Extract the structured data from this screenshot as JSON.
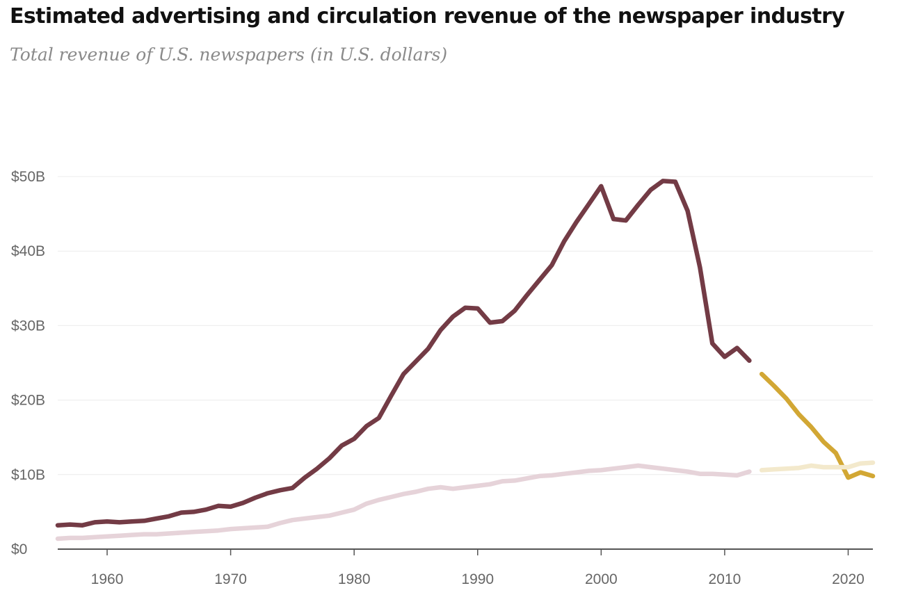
{
  "header": {
    "title": "Estimated advertising and circulation revenue of the newspaper industry",
    "subtitle": "Total revenue of U.S. newspapers (in U.S. dollars)"
  },
  "colors": {
    "advertising": "#733b45",
    "circulation": "#e6d3d9",
    "advertising_estimate": "#d2a734",
    "circulation_estimate": "#f3e9cc"
  },
  "chart_data": {
    "type": "line",
    "title": "Estimated advertising and circulation revenue of the newspaper industry",
    "subtitle": "Total revenue of U.S. newspapers (in U.S. dollars)",
    "xlabel": "",
    "ylabel": "",
    "xlim": [
      1956,
      2022
    ],
    "ylim": [
      0,
      50
    ],
    "x_ticks": [
      1960,
      1970,
      1980,
      1990,
      2000,
      2010,
      2020
    ],
    "x_tick_labels": [
      "1960",
      "1970",
      "1980",
      "1990",
      "2000",
      "2010",
      "2020"
    ],
    "y_ticks": [
      0,
      10,
      20,
      30,
      40,
      50
    ],
    "y_tick_labels": [
      "$0",
      "$10B",
      "$20B",
      "$30B",
      "$40B",
      "$50B"
    ],
    "grid": true,
    "legend": "none",
    "series": [
      {
        "color": "#733b45",
        "x": [
          1956,
          1957,
          1958,
          1959,
          1960,
          1961,
          1962,
          1963,
          1964,
          1965,
          1966,
          1967,
          1968,
          1969,
          1970,
          1971,
          1972,
          1973,
          1974,
          1975,
          1976,
          1977,
          1978,
          1979,
          1980,
          1981,
          1982,
          1983,
          1984,
          1985,
          1986,
          1987,
          1988,
          1989,
          1990,
          1991,
          1992,
          1993,
          1994,
          1995,
          1996,
          1997,
          1998,
          1999,
          2000,
          2001,
          2002,
          2003,
          2004,
          2005,
          2006,
          2007,
          2008,
          2009,
          2010,
          2011,
          2012
        ],
        "values": [
          3.2,
          3.3,
          3.2,
          3.6,
          3.7,
          3.6,
          3.7,
          3.8,
          4.1,
          4.4,
          4.9,
          5.0,
          5.3,
          5.8,
          5.7,
          6.2,
          6.9,
          7.5,
          7.9,
          8.2,
          9.6,
          10.8,
          12.2,
          13.9,
          14.8,
          16.5,
          17.6,
          20.6,
          23.5,
          25.2,
          26.9,
          29.4,
          31.2,
          32.4,
          32.3,
          30.4,
          30.6,
          32.0,
          34.1,
          36.1,
          38.1,
          41.3,
          43.9,
          46.3,
          48.7,
          44.3,
          44.1,
          46.2,
          48.2,
          49.4,
          49.3,
          45.4,
          37.8,
          27.6,
          25.8,
          27.0,
          25.3
        ]
      },
      {
        "color": "#e6d3d9",
        "x": [
          1956,
          1957,
          1958,
          1959,
          1960,
          1961,
          1962,
          1963,
          1964,
          1965,
          1966,
          1967,
          1968,
          1969,
          1970,
          1971,
          1972,
          1973,
          1974,
          1975,
          1976,
          1977,
          1978,
          1979,
          1980,
          1981,
          1982,
          1983,
          1984,
          1985,
          1986,
          1987,
          1988,
          1989,
          1990,
          1991,
          1992,
          1993,
          1994,
          1995,
          1996,
          1997,
          1998,
          1999,
          2000,
          2001,
          2002,
          2003,
          2004,
          2005,
          2006,
          2007,
          2008,
          2009,
          2010,
          2011,
          2012
        ],
        "values": [
          1.4,
          1.5,
          1.5,
          1.6,
          1.7,
          1.8,
          1.9,
          2.0,
          2.0,
          2.1,
          2.2,
          2.3,
          2.4,
          2.5,
          2.7,
          2.8,
          2.9,
          3.0,
          3.5,
          3.9,
          4.1,
          4.3,
          4.5,
          4.9,
          5.3,
          6.1,
          6.6,
          7.0,
          7.4,
          7.7,
          8.1,
          8.3,
          8.1,
          8.3,
          8.5,
          8.7,
          9.1,
          9.2,
          9.5,
          9.8,
          9.9,
          10.1,
          10.3,
          10.5,
          10.6,
          10.8,
          11.0,
          11.2,
          11.0,
          10.8,
          10.6,
          10.4,
          10.1,
          10.1,
          10.0,
          9.9,
          10.4
        ]
      },
      {
        "color": "#d2a734",
        "x": [
          2013,
          2014,
          2015,
          2016,
          2017,
          2018,
          2019,
          2020,
          2021,
          2022
        ],
        "values": [
          23.5,
          21.9,
          20.2,
          18.1,
          16.4,
          14.4,
          12.9,
          9.6,
          10.3,
          9.8
        ]
      },
      {
        "color": "#f3e9cc",
        "x": [
          2013,
          2014,
          2015,
          2016,
          2017,
          2018,
          2019,
          2020,
          2021,
          2022
        ],
        "values": [
          10.6,
          10.7,
          10.8,
          10.9,
          11.2,
          11.0,
          11.0,
          11.0,
          11.5,
          11.6
        ]
      }
    ]
  }
}
